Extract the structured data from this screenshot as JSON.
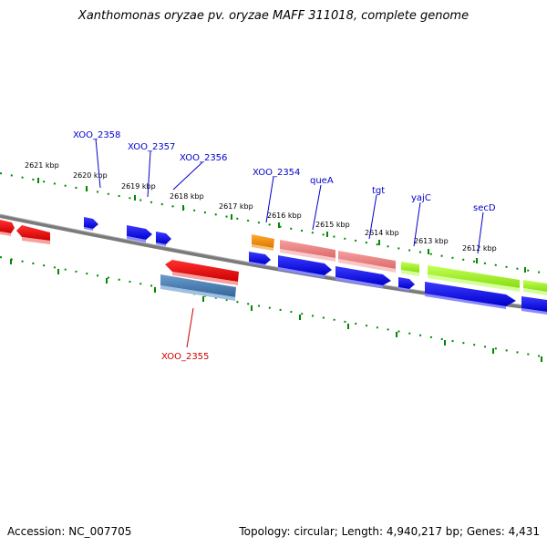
{
  "title": "Xanthomonas oryzae pv. oryzae MAFF 311018, complete genome",
  "footer": {
    "accession": "Accession: NC_007705",
    "summary": "Topology: circular; Length: 4,940,217 bp; Genes: 4,431"
  },
  "ticks": [
    {
      "label": "2621 kbp"
    },
    {
      "label": "2620 kbp"
    },
    {
      "label": "2619 kbp"
    },
    {
      "label": "2618 kbp"
    },
    {
      "label": "2617 kbp"
    },
    {
      "label": "2616 kbp"
    },
    {
      "label": "2615 kbp"
    },
    {
      "label": "2614 kbp"
    },
    {
      "label": "2613 kbp"
    },
    {
      "label": "2612 kbp"
    }
  ],
  "gene_labels": [
    {
      "name": "XOO_2358",
      "color": "#0000cc"
    },
    {
      "name": "XOO_2357",
      "color": "#0000cc"
    },
    {
      "name": "XOO_2356",
      "color": "#0000cc"
    },
    {
      "name": "XOO_2354",
      "color": "#0000cc"
    },
    {
      "name": "queA",
      "color": "#0000cc"
    },
    {
      "name": "tgt",
      "color": "#0000cc"
    },
    {
      "name": "yajC",
      "color": "#0000cc"
    },
    {
      "name": "secD",
      "color": "#0000cc"
    },
    {
      "name": "XOO_2355",
      "color": "#cc0000"
    }
  ],
  "colors": {
    "cds_blue": "#0000ee",
    "gene_red": "#ee0000",
    "gene_pink": "#f08080",
    "gene_lime": "#99ee22",
    "gene_orange": "#ee8800",
    "gene_steel": "#4477aa",
    "backbone": "#808080",
    "tick_green": "#008800"
  }
}
